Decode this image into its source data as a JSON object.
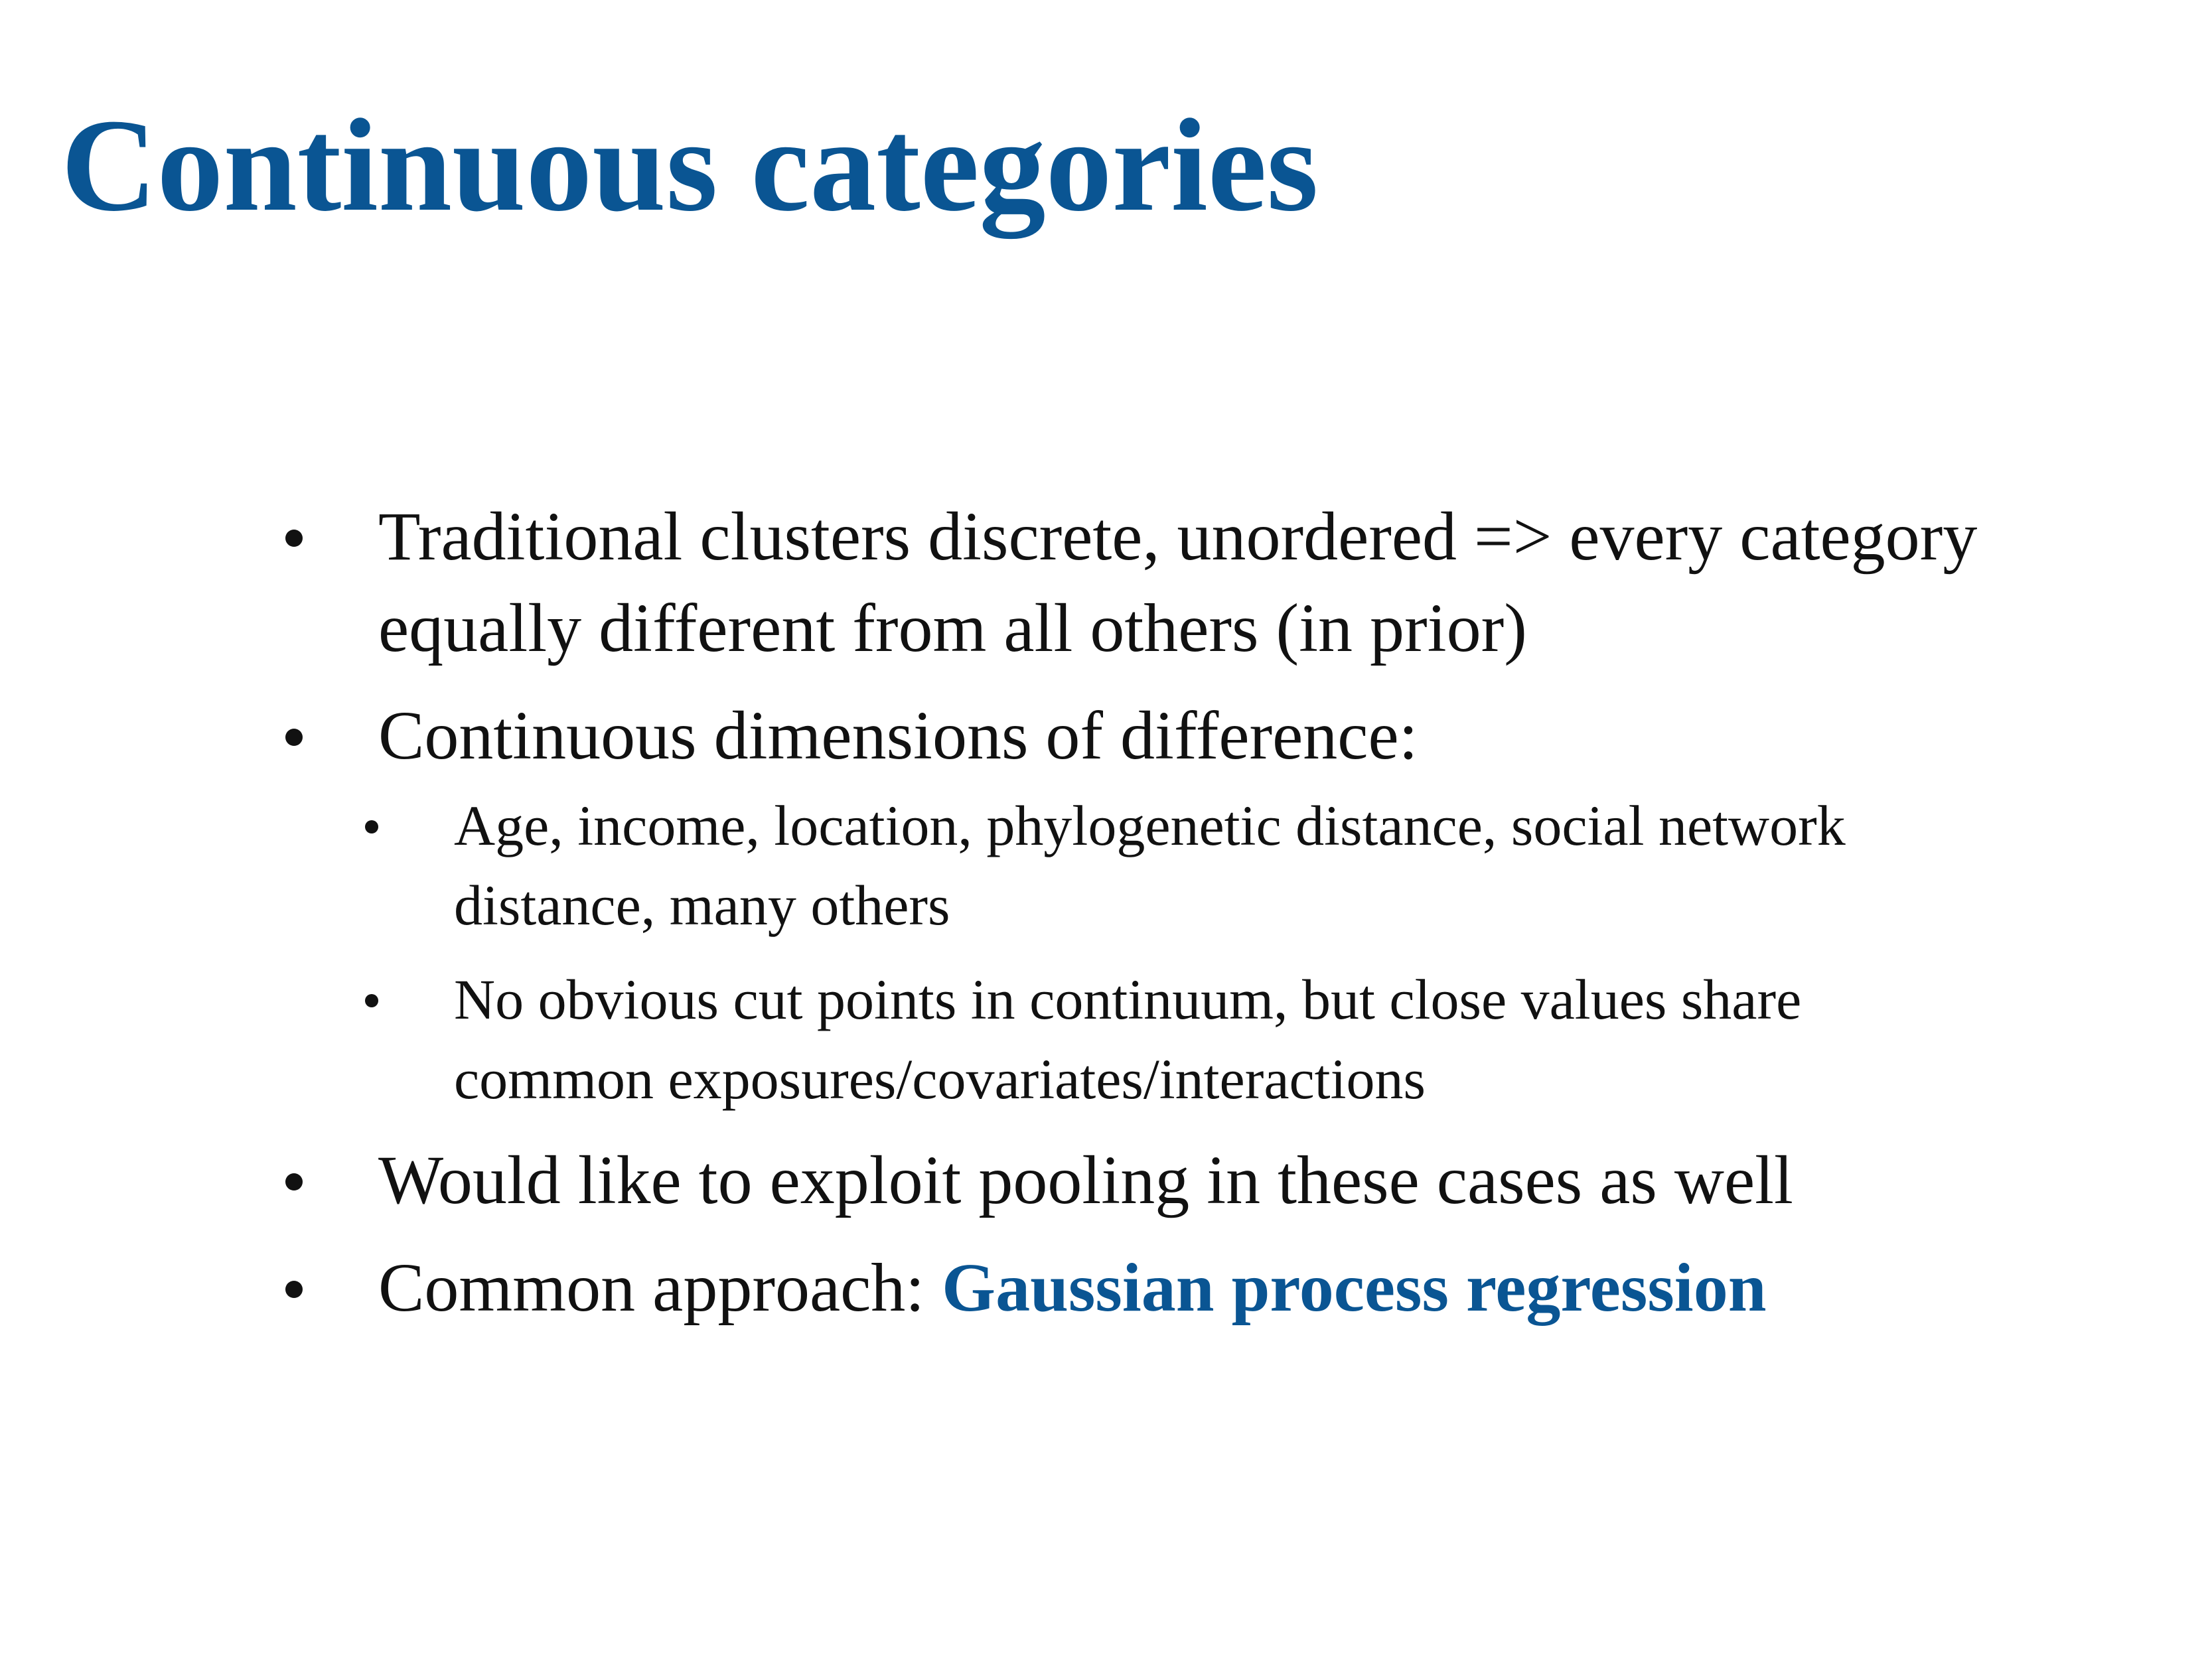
{
  "slide": {
    "title": "Continuous categories",
    "bullets": [
      {
        "text": "Traditional clusters discrete, unordered => every category equally different from all others (in prior)"
      },
      {
        "text": "Continuous dimensions of difference:",
        "sub": [
          "Age, income, location, phylogenetic distance, social network distance, many others",
          "No obvious cut points in continuum, but close values share common exposures/covariates/interactions"
        ]
      },
      {
        "text": "Would like to exploit pooling in these cases as well"
      },
      {
        "text": "Common approach: ",
        "highlight": "Gaussian process regression"
      }
    ]
  },
  "colors": {
    "accent": "#0a5593",
    "text": "#111111",
    "background": "#ffffff"
  }
}
